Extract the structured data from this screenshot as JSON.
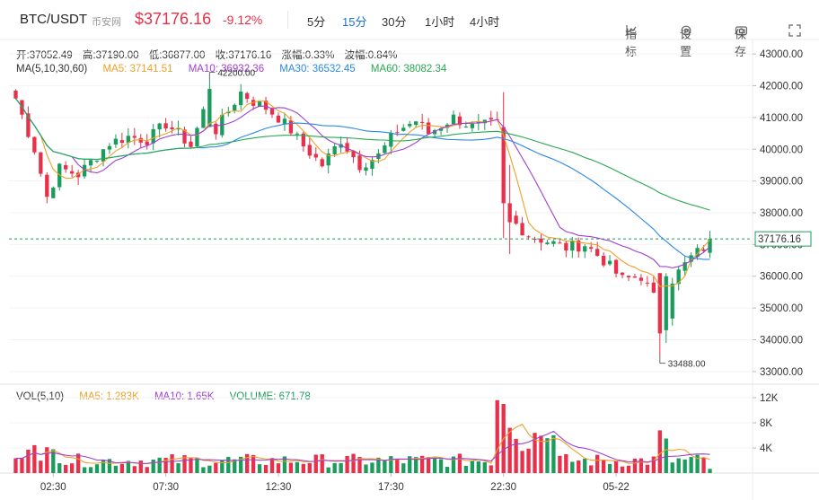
{
  "header": {
    "symbol": "BTC/USDT",
    "exchange": "币安网",
    "price": "$37176.16",
    "change": "-9.12%",
    "intervals": [
      "5分",
      "15分",
      "30分",
      "1小时",
      "4小时"
    ],
    "active_interval": "15分",
    "tools": [
      {
        "icon": "indicator-icon",
        "label": "指标"
      },
      {
        "icon": "settings-icon",
        "label": "设置"
      },
      {
        "icon": "camera-icon",
        "label": "保存"
      }
    ]
  },
  "ohlc": {
    "open": "开:37052.49",
    "high": "高:37190.00",
    "low": "低:36877.00",
    "close": "收:37176.16",
    "amplitude": "涨幅:0.33%",
    "volatility": "波幅:0.84%"
  },
  "ma_legend": {
    "label": "MA(5,10,30,60)",
    "ma5": "MA5: 37141.51",
    "ma10": "MA10: 36932.36",
    "ma30": "MA30: 36532.45",
    "ma60": "MA60: 38082.34"
  },
  "vol_legend": {
    "label": "VOL(5,10)",
    "ma5": "MA5: 1.283K",
    "ma10": "MA10: 1.65K",
    "volume": "VOLUME: 671.78"
  },
  "colors": {
    "up": "#1a9d5c",
    "down": "#e8304a",
    "ma5": "#f0a028",
    "ma10": "#a040d0",
    "ma30": "#2a88e8",
    "ma60": "#28a850",
    "accent": "#1e6fe0"
  },
  "chart_data": {
    "type": "candlestick",
    "price_axis_ticks": [
      "43000.00",
      "42000.00",
      "41000.00",
      "40000.00",
      "39000.00",
      "38000.00",
      "37000.00",
      "36000.00",
      "35000.00",
      "34000.00",
      "33000.00"
    ],
    "price_ylim": [
      32600,
      43400
    ],
    "volume_axis_ticks": [
      "12K",
      "8K",
      "4K"
    ],
    "volume_ylim": [
      0,
      13000
    ],
    "time_ticks": [
      "02:30",
      "07:30",
      "12:30",
      "17:30",
      "22:30",
      "05-22"
    ],
    "current_price_label": "37176.16",
    "current_price": 37176.16,
    "high_annotation": {
      "label": "42200.00",
      "value": 42200
    },
    "low_annotation": {
      "label": "33488.00",
      "value": 33488
    },
    "ma5_end": 37141.51,
    "ma10_end": 36932.36,
    "ma30_end": 36532.45,
    "ma60_end": 38082.34
  }
}
